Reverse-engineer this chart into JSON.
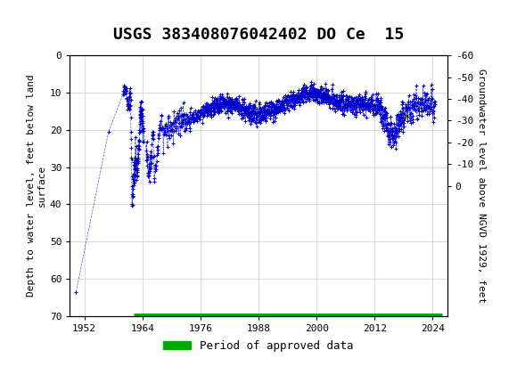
{
  "title": "USGS 383408076042402 DO Ce  15",
  "ylabel_left": "Depth to water level, feet below land\nsurface",
  "ylabel_right": "Groundwater level above NGVD 1929, feet",
  "ylim_left": [
    70,
    0
  ],
  "ylim_right": [
    62,
    -2
  ],
  "xlim": [
    1949,
    2027
  ],
  "xticks": [
    1952,
    1964,
    1976,
    1988,
    2000,
    2012,
    2024
  ],
  "yticks_left": [
    0,
    10,
    20,
    30,
    40,
    50,
    60,
    70
  ],
  "yticks_right": [
    0,
    -10,
    -20,
    -30,
    -40,
    -50,
    -60
  ],
  "header_color": "#1a6b3c",
  "data_color": "#0000cc",
  "approved_color": "#00aa00",
  "background_color": "#ffffff",
  "grid_color": "#cccccc",
  "title_fontsize": 13,
  "axis_fontsize": 8,
  "tick_fontsize": 8,
  "legend_label": "Period of approved data",
  "approved_start": 1962.3,
  "approved_end": 2026.0,
  "approved_gap_end": 1963.0,
  "fig_width": 5.8,
  "fig_height": 4.3,
  "dpi": 100
}
